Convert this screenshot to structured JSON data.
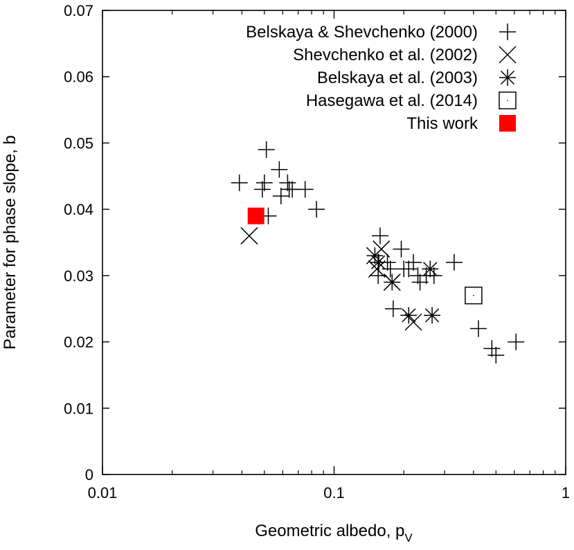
{
  "chart_data": {
    "type": "scatter",
    "xscale": "log",
    "xlim": [
      0.01,
      1
    ],
    "ylim": [
      0,
      0.07
    ],
    "xlabel": "Geometric albedo, p",
    "xlabel_sub": "V",
    "ylabel": "Parameter for phase slope, b",
    "x_ticks": [
      0.01,
      0.1,
      1
    ],
    "x_tick_labels": [
      "0.01",
      "0.1",
      "1"
    ],
    "y_ticks": [
      0,
      0.01,
      0.02,
      0.03,
      0.04,
      0.05,
      0.06,
      0.07
    ],
    "y_tick_labels": [
      "0",
      "0.01",
      "0.02",
      "0.03",
      "0.04",
      "0.05",
      "0.06",
      "0.07"
    ],
    "legend_position": "top-right",
    "series": [
      {
        "name": "Belskaya & Shevchenko (2000)",
        "marker": "plus",
        "points": [
          [
            0.039,
            0.044
          ],
          [
            0.047,
            0.039
          ],
          [
            0.049,
            0.043
          ],
          [
            0.05,
            0.044
          ],
          [
            0.051,
            0.049
          ],
          [
            0.052,
            0.039
          ],
          [
            0.058,
            0.046
          ],
          [
            0.059,
            0.042
          ],
          [
            0.063,
            0.044
          ],
          [
            0.064,
            0.043
          ],
          [
            0.066,
            0.043
          ],
          [
            0.075,
            0.043
          ],
          [
            0.084,
            0.04
          ],
          [
            0.15,
            0.033
          ],
          [
            0.155,
            0.03
          ],
          [
            0.156,
            0.032
          ],
          [
            0.158,
            0.036
          ],
          [
            0.17,
            0.032
          ],
          [
            0.175,
            0.031
          ],
          [
            0.18,
            0.025
          ],
          [
            0.195,
            0.034
          ],
          [
            0.2,
            0.031
          ],
          [
            0.21,
            0.031
          ],
          [
            0.22,
            0.032
          ],
          [
            0.23,
            0.03
          ],
          [
            0.235,
            0.029
          ],
          [
            0.25,
            0.03
          ],
          [
            0.27,
            0.03
          ],
          [
            0.33,
            0.032
          ],
          [
            0.42,
            0.022
          ],
          [
            0.48,
            0.019
          ],
          [
            0.5,
            0.018
          ],
          [
            0.61,
            0.02
          ]
        ]
      },
      {
        "name": "Shevchenko et al. (2002)",
        "marker": "cross",
        "points": [
          [
            0.043,
            0.036
          ],
          [
            0.15,
            0.033
          ],
          [
            0.153,
            0.031
          ],
          [
            0.16,
            0.034
          ],
          [
            0.178,
            0.029
          ],
          [
            0.22,
            0.023
          ]
        ]
      },
      {
        "name": "Belskaya et al. (2003)",
        "marker": "star",
        "points": [
          [
            0.155,
            0.032
          ],
          [
            0.178,
            0.029
          ],
          [
            0.21,
            0.024
          ],
          [
            0.26,
            0.031
          ],
          [
            0.265,
            0.024
          ]
        ]
      },
      {
        "name": "Hasegawa et al. (2014)",
        "marker": "open-square",
        "points": [
          [
            0.4,
            0.027
          ]
        ]
      },
      {
        "name": "This work",
        "marker": "filled-square",
        "color": "#ff0000",
        "points": [
          [
            0.046,
            0.039
          ]
        ]
      }
    ]
  }
}
